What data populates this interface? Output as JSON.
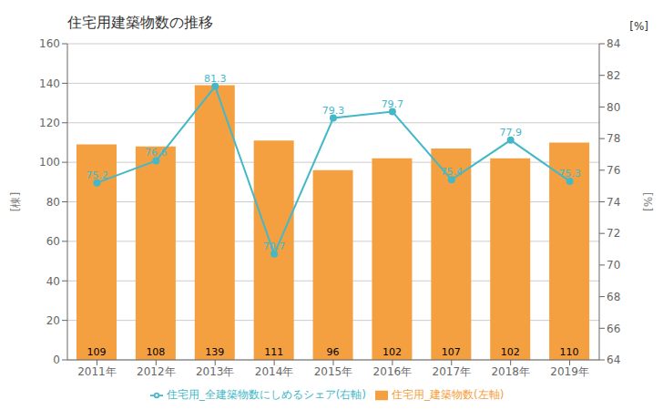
{
  "chart_data": {
    "type": "bar",
    "title": "住宅用建築物数の推移",
    "ylabel": "[棟]",
    "y2label": "[%]",
    "annotations": [
      "[%]"
    ],
    "categories": [
      "2011年",
      "2012年",
      "2013年",
      "2014年",
      "2015年",
      "2016年",
      "2017年",
      "2018年",
      "2019年"
    ],
    "series": [
      {
        "name": "住宅用_建築物数(左軸)",
        "type": "bar",
        "color": "#F5A040",
        "values": [
          109,
          108,
          139,
          111,
          96,
          102,
          107,
          102,
          110
        ]
      },
      {
        "name": "住宅用_全建築物数にしめるシェア(右軸)",
        "type": "line",
        "axis": "y2",
        "color": "#45B8C8",
        "marker": "o",
        "line_style": "solid",
        "values": [
          75.2,
          76.6,
          81.3,
          70.7,
          79.3,
          79.7,
          75.4,
          77.9,
          75.3
        ]
      }
    ],
    "ylim": [
      0,
      160
    ],
    "yticks": [
      0,
      20,
      40,
      60,
      80,
      100,
      120,
      140,
      160
    ],
    "y2lim": [
      64,
      84
    ],
    "y2ticks": [
      64,
      66,
      68,
      70,
      72,
      74,
      76,
      78,
      80,
      82,
      84
    ],
    "grid": true,
    "legend": "bottom",
    "data_labels": true
  }
}
